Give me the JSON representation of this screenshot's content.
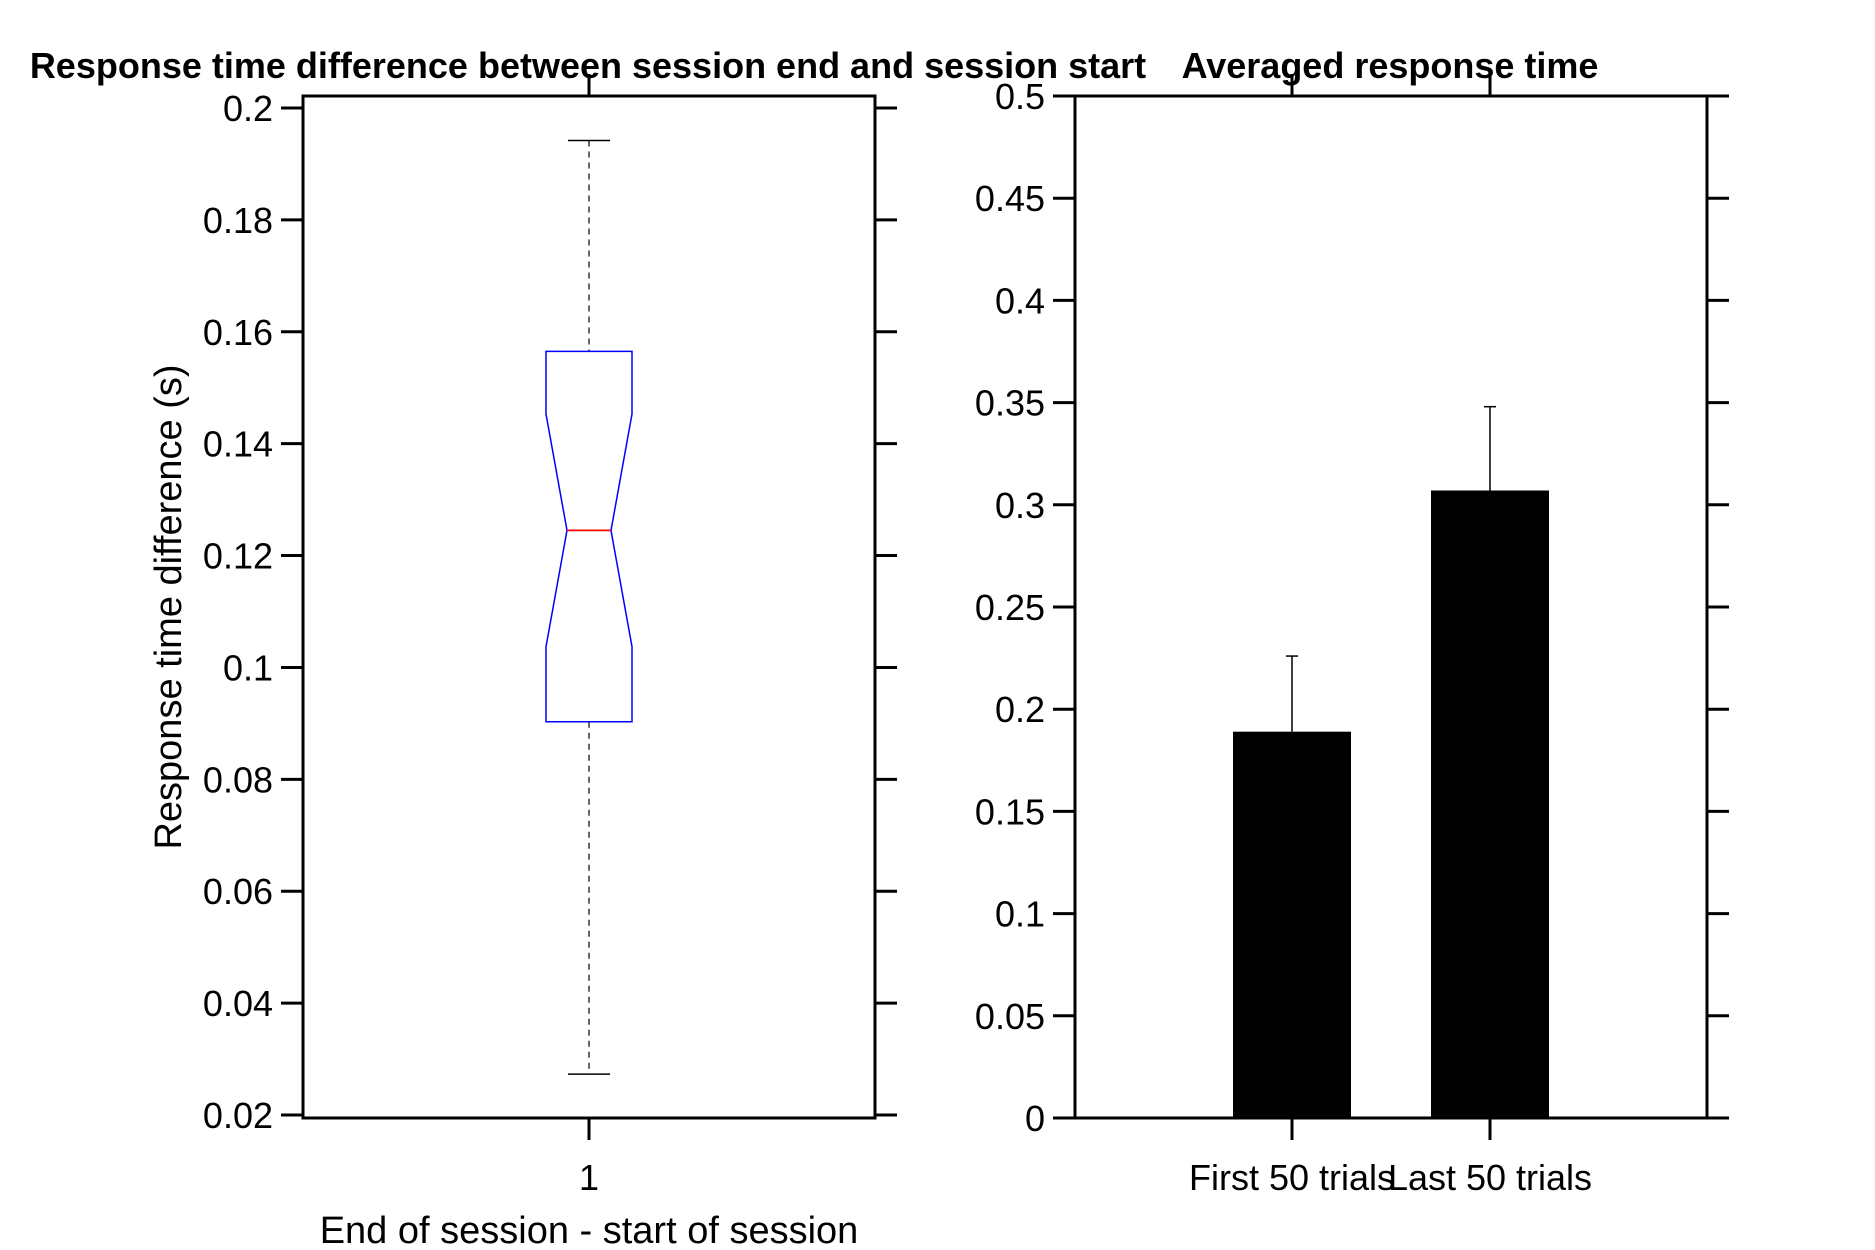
{
  "chart_data": [
    {
      "type": "box",
      "title": "Response time difference between session end and session start",
      "xlabel": "End of session - start of session",
      "ylabel": "Response time difference (s)",
      "ylim": [
        0.02,
        0.2
      ],
      "yticks": [
        0.02,
        0.04,
        0.06,
        0.08,
        0.1,
        0.12,
        0.14,
        0.16,
        0.18,
        0.2
      ],
      "ytick_labels": [
        "0.02",
        "0.04",
        "0.06",
        "0.08",
        "0.1",
        "0.12",
        "0.14",
        "0.16",
        "0.18",
        "0.2"
      ],
      "categories": [
        "1"
      ],
      "box": {
        "whisker_low": 0.0273,
        "q1": 0.0903,
        "notch_low": 0.1037,
        "median": 0.1245,
        "notch_high": 0.1453,
        "q3": 0.1565,
        "whisker_high": 0.1942
      },
      "colors": {
        "box": "#0000ff",
        "median": "#ff0000",
        "whisker": "#000000"
      },
      "grid": false
    },
    {
      "type": "bar",
      "title": "Averaged response time",
      "xlabel": "",
      "ylabel": "",
      "ylim": [
        0,
        0.5
      ],
      "yticks": [
        0,
        0.05,
        0.1,
        0.15,
        0.2,
        0.25,
        0.3,
        0.35,
        0.4,
        0.45,
        0.5
      ],
      "ytick_labels": [
        "0",
        "0.05",
        "0.1",
        "0.15",
        "0.2",
        "0.25",
        "0.3",
        "0.35",
        "0.4",
        "0.45",
        "0.5"
      ],
      "categories": [
        "First 50 trials",
        "Last 50 trials"
      ],
      "values": [
        0.189,
        0.307
      ],
      "error_upper": [
        0.226,
        0.348
      ],
      "colors": {
        "bar": "#000000"
      },
      "grid": false
    }
  ]
}
